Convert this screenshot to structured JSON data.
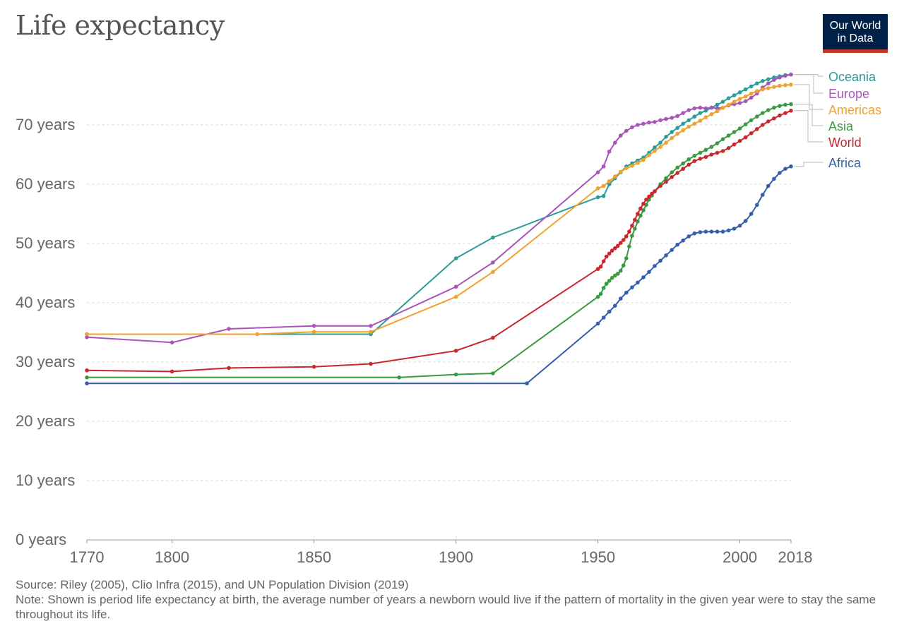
{
  "title": "Life expectancy",
  "logo": {
    "line1": "Our World",
    "line2": "in Data"
  },
  "source": "Source: Riley (2005), Clio Infra (2015), and UN Population Division (2019)",
  "note": "Note: Shown is period life expectancy at birth, the average number of years a newborn would live if the pattern of mortality in the given year were to stay the same throughout its life.",
  "chart_data": {
    "type": "line",
    "title": "Life expectancy",
    "xlabel": "",
    "ylabel": "",
    "xlim": [
      1770,
      2018
    ],
    "ylim": [
      0,
      80
    ],
    "x_ticks": [
      1770,
      1800,
      1850,
      1900,
      1950,
      2000,
      2018
    ],
    "y_ticks": [
      {
        "value": 0,
        "label": "0 years"
      },
      {
        "value": 10,
        "label": "10 years"
      },
      {
        "value": 20,
        "label": "20 years"
      },
      {
        "value": 30,
        "label": "30 years"
      },
      {
        "value": 40,
        "label": "40 years"
      },
      {
        "value": 50,
        "label": "50 years"
      },
      {
        "value": 60,
        "label": "60 years"
      },
      {
        "value": 70,
        "label": "70 years"
      }
    ],
    "grid": true,
    "legend": "right",
    "series": [
      {
        "name": "Oceania",
        "color": "#2a9d9b",
        "points": [
          [
            1770,
            34.7
          ],
          [
            1870,
            34.7
          ],
          [
            1900,
            47.5
          ],
          [
            1913,
            51
          ],
          [
            1950,
            57.8
          ],
          [
            1952,
            58
          ],
          [
            1954,
            60
          ],
          [
            1956,
            61
          ],
          [
            1958,
            62
          ],
          [
            1960,
            63
          ],
          [
            1962,
            63.5
          ],
          [
            1964,
            64
          ],
          [
            1966,
            64.5
          ],
          [
            1968,
            65.3
          ],
          [
            1970,
            66.2
          ],
          [
            1972,
            67
          ],
          [
            1974,
            68
          ],
          [
            1976,
            68.8
          ],
          [
            1978,
            69.5
          ],
          [
            1980,
            70.2
          ],
          [
            1982,
            70.8
          ],
          [
            1984,
            71.4
          ],
          [
            1986,
            72
          ],
          [
            1988,
            72.4
          ],
          [
            1990,
            72.9
          ],
          [
            1992,
            73.4
          ],
          [
            1994,
            73.9
          ],
          [
            1996,
            74.5
          ],
          [
            1998,
            75
          ],
          [
            2000,
            75.5
          ],
          [
            2002,
            76
          ],
          [
            2004,
            76.5
          ],
          [
            2006,
            77
          ],
          [
            2008,
            77.4
          ],
          [
            2010,
            77.7
          ],
          [
            2012,
            78
          ],
          [
            2014,
            78.2
          ],
          [
            2016,
            78.4
          ],
          [
            2018,
            78.5
          ]
        ]
      },
      {
        "name": "Europe",
        "color": "#a855b8",
        "points": [
          [
            1770,
            34.2
          ],
          [
            1800,
            33.3
          ],
          [
            1820,
            35.6
          ],
          [
            1850,
            36.1
          ],
          [
            1870,
            36.1
          ],
          [
            1900,
            42.7
          ],
          [
            1913,
            46.8
          ],
          [
            1950,
            62
          ],
          [
            1952,
            63
          ],
          [
            1954,
            65.5
          ],
          [
            1956,
            67
          ],
          [
            1958,
            68.2
          ],
          [
            1960,
            69
          ],
          [
            1962,
            69.6
          ],
          [
            1964,
            70
          ],
          [
            1966,
            70.2
          ],
          [
            1968,
            70.4
          ],
          [
            1970,
            70.5
          ],
          [
            1972,
            70.8
          ],
          [
            1974,
            71
          ],
          [
            1976,
            71.2
          ],
          [
            1978,
            71.5
          ],
          [
            1980,
            72
          ],
          [
            1982,
            72.5
          ],
          [
            1984,
            72.8
          ],
          [
            1986,
            72.9
          ],
          [
            1988,
            72.8
          ],
          [
            1990,
            72.9
          ],
          [
            1992,
            72.8
          ],
          [
            1994,
            72.9
          ],
          [
            1996,
            73.3
          ],
          [
            1998,
            73.5
          ],
          [
            2000,
            73.7
          ],
          [
            2002,
            74
          ],
          [
            2004,
            74.6
          ],
          [
            2006,
            75.3
          ],
          [
            2008,
            76.3
          ],
          [
            2010,
            77
          ],
          [
            2012,
            77.6
          ],
          [
            2014,
            78
          ],
          [
            2016,
            78.3
          ],
          [
            2018,
            78.5
          ]
        ]
      },
      {
        "name": "Americas",
        "color": "#f0a12e",
        "points": [
          [
            1770,
            34.7
          ],
          [
            1830,
            34.7
          ],
          [
            1850,
            35.1
          ],
          [
            1870,
            35.1
          ],
          [
            1900,
            41
          ],
          [
            1913,
            45.2
          ],
          [
            1950,
            59.3
          ],
          [
            1952,
            59.7
          ],
          [
            1954,
            60.5
          ],
          [
            1956,
            61.3
          ],
          [
            1958,
            62.1
          ],
          [
            1960,
            62.7
          ],
          [
            1962,
            63.1
          ],
          [
            1964,
            63.6
          ],
          [
            1966,
            64.1
          ],
          [
            1968,
            64.9
          ],
          [
            1970,
            65.6
          ],
          [
            1972,
            66.3
          ],
          [
            1974,
            67
          ],
          [
            1976,
            67.8
          ],
          [
            1978,
            68.5
          ],
          [
            1980,
            69.1
          ],
          [
            1982,
            69.7
          ],
          [
            1984,
            70.2
          ],
          [
            1986,
            70.7
          ],
          [
            1988,
            71.3
          ],
          [
            1990,
            71.8
          ],
          [
            1992,
            72.3
          ],
          [
            1994,
            72.9
          ],
          [
            1996,
            73.4
          ],
          [
            1998,
            73.9
          ],
          [
            2000,
            74.4
          ],
          [
            2002,
            74.8
          ],
          [
            2004,
            75.3
          ],
          [
            2006,
            75.7
          ],
          [
            2008,
            76
          ],
          [
            2010,
            76.2
          ],
          [
            2012,
            76.4
          ],
          [
            2014,
            76.6
          ],
          [
            2016,
            76.7
          ],
          [
            2018,
            76.8
          ]
        ]
      },
      {
        "name": "Asia",
        "color": "#3a9a41",
        "points": [
          [
            1770,
            27.4
          ],
          [
            1880,
            27.4
          ],
          [
            1900,
            27.9
          ],
          [
            1913,
            28.1
          ],
          [
            1950,
            41
          ],
          [
            1951,
            41.5
          ],
          [
            1952,
            42.5
          ],
          [
            1953,
            43.2
          ],
          [
            1954,
            43.7
          ],
          [
            1955,
            44.2
          ],
          [
            1956,
            44.6
          ],
          [
            1957,
            44.9
          ],
          [
            1958,
            45.4
          ],
          [
            1959,
            46.3
          ],
          [
            1960,
            47.5
          ],
          [
            1961,
            49.5
          ],
          [
            1962,
            51.3
          ],
          [
            1963,
            52.5
          ],
          [
            1964,
            53.7
          ],
          [
            1965,
            54.7
          ],
          [
            1966,
            55.6
          ],
          [
            1967,
            56.5
          ],
          [
            1968,
            57.4
          ],
          [
            1969,
            58.1
          ],
          [
            1970,
            58.8
          ],
          [
            1972,
            60
          ],
          [
            1974,
            61
          ],
          [
            1976,
            62
          ],
          [
            1978,
            62.8
          ],
          [
            1980,
            63.5
          ],
          [
            1982,
            64.2
          ],
          [
            1984,
            64.8
          ],
          [
            1986,
            65.3
          ],
          [
            1988,
            65.8
          ],
          [
            1990,
            66.3
          ],
          [
            1992,
            66.9
          ],
          [
            1994,
            67.6
          ],
          [
            1996,
            68.2
          ],
          [
            1998,
            68.8
          ],
          [
            2000,
            69.4
          ],
          [
            2002,
            70.1
          ],
          [
            2004,
            70.8
          ],
          [
            2006,
            71.4
          ],
          [
            2008,
            72
          ],
          [
            2010,
            72.5
          ],
          [
            2012,
            72.9
          ],
          [
            2014,
            73.2
          ],
          [
            2016,
            73.4
          ],
          [
            2018,
            73.5
          ]
        ]
      },
      {
        "name": "World",
        "color": "#c8282d",
        "points": [
          [
            1770,
            28.6
          ],
          [
            1800,
            28.4
          ],
          [
            1820,
            29
          ],
          [
            1850,
            29.2
          ],
          [
            1870,
            29.7
          ],
          [
            1900,
            31.9
          ],
          [
            1913,
            34.1
          ],
          [
            1950,
            45.7
          ],
          [
            1951,
            46.1
          ],
          [
            1952,
            47
          ],
          [
            1953,
            47.8
          ],
          [
            1954,
            48.3
          ],
          [
            1955,
            48.8
          ],
          [
            1956,
            49.2
          ],
          [
            1957,
            49.6
          ],
          [
            1958,
            50.1
          ],
          [
            1959,
            50.6
          ],
          [
            1960,
            51.2
          ],
          [
            1961,
            52
          ],
          [
            1962,
            53
          ],
          [
            1963,
            54
          ],
          [
            1964,
            55
          ],
          [
            1965,
            55.9
          ],
          [
            1966,
            56.7
          ],
          [
            1967,
            57.4
          ],
          [
            1968,
            57.9
          ],
          [
            1969,
            58.4
          ],
          [
            1970,
            58.8
          ],
          [
            1972,
            59.7
          ],
          [
            1974,
            60.4
          ],
          [
            1976,
            61.2
          ],
          [
            1978,
            61.9
          ],
          [
            1980,
            62.6
          ],
          [
            1982,
            63.3
          ],
          [
            1984,
            63.9
          ],
          [
            1986,
            64.3
          ],
          [
            1988,
            64.6
          ],
          [
            1990,
            65
          ],
          [
            1992,
            65.3
          ],
          [
            1994,
            65.6
          ],
          [
            1996,
            66.1
          ],
          [
            1998,
            66.7
          ],
          [
            2000,
            67.3
          ],
          [
            2002,
            67.9
          ],
          [
            2004,
            68.6
          ],
          [
            2006,
            69.3
          ],
          [
            2008,
            70
          ],
          [
            2010,
            70.6
          ],
          [
            2012,
            71.1
          ],
          [
            2014,
            71.6
          ],
          [
            2016,
            72
          ],
          [
            2018,
            72.4
          ]
        ]
      },
      {
        "name": "Africa",
        "color": "#3460a8",
        "points": [
          [
            1770,
            26.4
          ],
          [
            1925,
            26.4
          ],
          [
            1950,
            36.5
          ],
          [
            1952,
            37.5
          ],
          [
            1954,
            38.5
          ],
          [
            1956,
            39.5
          ],
          [
            1958,
            40.7
          ],
          [
            1960,
            41.7
          ],
          [
            1962,
            42.6
          ],
          [
            1964,
            43.4
          ],
          [
            1966,
            44.3
          ],
          [
            1968,
            45.2
          ],
          [
            1970,
            46.2
          ],
          [
            1972,
            47.1
          ],
          [
            1974,
            48
          ],
          [
            1976,
            48.9
          ],
          [
            1978,
            49.8
          ],
          [
            1980,
            50.5
          ],
          [
            1982,
            51.2
          ],
          [
            1984,
            51.7
          ],
          [
            1986,
            51.9
          ],
          [
            1988,
            52
          ],
          [
            1990,
            52
          ],
          [
            1992,
            52
          ],
          [
            1994,
            52
          ],
          [
            1996,
            52.2
          ],
          [
            1998,
            52.5
          ],
          [
            2000,
            53
          ],
          [
            2002,
            53.8
          ],
          [
            2004,
            55
          ],
          [
            2006,
            56.5
          ],
          [
            2008,
            58.2
          ],
          [
            2010,
            59.7
          ],
          [
            2012,
            60.9
          ],
          [
            2014,
            61.9
          ],
          [
            2016,
            62.6
          ],
          [
            2018,
            63
          ]
        ]
      }
    ]
  }
}
